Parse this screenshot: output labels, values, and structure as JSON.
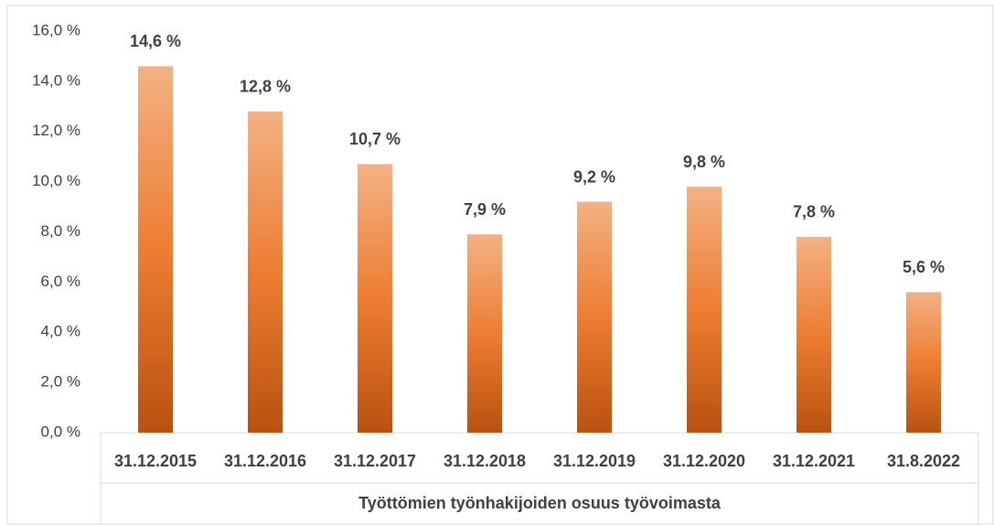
{
  "chart_data": {
    "type": "bar",
    "x_label": "Työttömien työnhakijoiden osuus työvoimasta",
    "categories": [
      "31.12.2015",
      "31.12.2016",
      "31.12.2017",
      "31.12.2018",
      "31.12.2019",
      "31.12.2020",
      "31.12.2021",
      "31.8.2022"
    ],
    "values": [
      14.6,
      12.8,
      10.7,
      7.9,
      9.2,
      9.8,
      7.8,
      5.6
    ],
    "value_labels": [
      "14,6 %",
      "12,8 %",
      "10,7 %",
      "7,9 %",
      "9,2 %",
      "9,8 %",
      "7,8 %",
      "5,6 %"
    ],
    "color": "#ed7d31",
    "ylim": [
      0,
      16
    ],
    "yticks": [
      {
        "value": 0,
        "label": "0,0 %"
      },
      {
        "value": 2,
        "label": "2,0 %"
      },
      {
        "value": 4,
        "label": "4,0 %"
      },
      {
        "value": 6,
        "label": "6,0 %"
      },
      {
        "value": 8,
        "label": "8,0 %"
      },
      {
        "value": 10,
        "label": "10,0 %"
      },
      {
        "value": 12,
        "label": "12,0 %"
      },
      {
        "value": 14,
        "label": "14,0 %"
      },
      {
        "value": 16,
        "label": "16,0 %"
      }
    ],
    "grid": false
  }
}
